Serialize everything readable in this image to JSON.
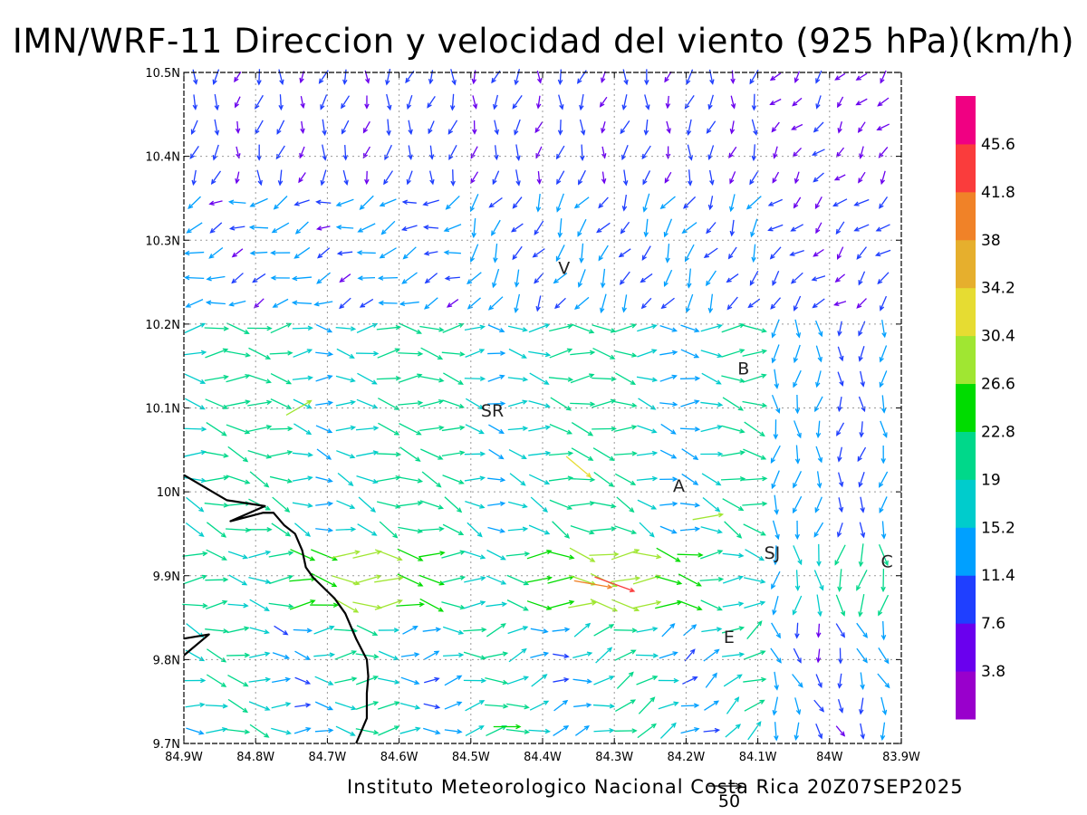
{
  "title": "IMN/WRF-11 Direccion y velocidad del viento (925 hPa)(km/h)",
  "footer": "Instituto Meteorologico Nacional Costa Rica 20Z07SEP2025",
  "reference_vector_label": "50",
  "map": {
    "lon_range": [
      -84.9,
      -83.9
    ],
    "lat_range": [
      9.7,
      10.5
    ],
    "lon_ticks": [
      -84.9,
      -84.8,
      -84.7,
      -84.6,
      -84.5,
      -84.4,
      -84.3,
      -84.2,
      -84.1,
      -84.0,
      -83.9
    ],
    "lon_tick_labels": [
      "84.9W",
      "84.8W",
      "84.7W",
      "84.6W",
      "84.5W",
      "84.4W",
      "84.3W",
      "84.2W",
      "84.1W",
      "84W",
      "83.9W"
    ],
    "lat_ticks": [
      9.7,
      9.8,
      9.9,
      10.0,
      10.1,
      10.2,
      10.3,
      10.4,
      10.5
    ],
    "lat_tick_labels": [
      "9.7N",
      "9.8N",
      "9.9N",
      "10N",
      "10.1N",
      "10.2N",
      "10.3N",
      "10.4N",
      "10.5N"
    ],
    "gridlines": true,
    "grid_style": "dotted",
    "coastline": [
      [
        -84.9,
        10.02
      ],
      [
        -84.84,
        9.99
      ],
      [
        -84.787,
        9.983
      ],
      [
        -84.835,
        9.965
      ],
      [
        -84.79,
        9.975
      ],
      [
        -84.775,
        9.975
      ],
      [
        -84.76,
        9.96
      ],
      [
        -84.745,
        9.95
      ],
      [
        -84.735,
        9.93
      ],
      [
        -84.73,
        9.91
      ],
      [
        -84.72,
        9.898
      ],
      [
        -84.69,
        9.873
      ],
      [
        -84.675,
        9.855
      ],
      [
        -84.66,
        9.825
      ],
      [
        -84.645,
        9.8
      ],
      [
        -84.643,
        9.78
      ],
      [
        -84.645,
        9.76
      ],
      [
        -84.645,
        9.73
      ],
      [
        -84.66,
        9.7
      ]
    ],
    "coastline_2": [
      [
        -84.9,
        9.805
      ],
      [
        -84.865,
        9.83
      ],
      [
        -84.9,
        9.825
      ]
    ],
    "cities": [
      {
        "label": "V",
        "lon": -84.37,
        "lat": 10.26
      },
      {
        "label": "B",
        "lon": -84.12,
        "lat": 10.14
      },
      {
        "label": "SR",
        "lon": -84.47,
        "lat": 10.09
      },
      {
        "label": "A",
        "lon": -84.21,
        "lat": 10.0
      },
      {
        "label": "SJ",
        "lon": -84.08,
        "lat": 9.92
      },
      {
        "label": "C",
        "lon": -83.92,
        "lat": 9.91
      },
      {
        "label": "E",
        "lon": -84.14,
        "lat": 9.82
      }
    ]
  },
  "colorbar": {
    "labels": [
      "3.8",
      "7.6",
      "11.4",
      "15.2",
      "19",
      "22.8",
      "26.6",
      "30.4",
      "34.2",
      "38",
      "41.8",
      "45.6"
    ],
    "colors": [
      "#9900cc",
      "#6a00ee",
      "#1f3fff",
      "#00a0ff",
      "#00cccc",
      "#00d88a",
      "#00dc00",
      "#a0e632",
      "#e6dc32",
      "#e6af2d",
      "#f08228",
      "#fa3c3c",
      "#f00082"
    ]
  },
  "chart_data": {
    "type": "vector_field",
    "title": "IMN/WRF-11 Direccion y velocidad del viento (925 hPa)(km/h)",
    "grid_lon_start": -84.9,
    "grid_lat_start": 9.7,
    "grid_step_deg": 0.03,
    "grid_cols": 35,
    "grid_rows": 27,
    "reference_speed_kmh": 50,
    "notable_vectors": [
      {
        "lon": -84.3,
        "lat": 9.89,
        "dir_to_deg": 110,
        "speed_kmh": 45
      },
      {
        "lon": -84.33,
        "lat": 9.89,
        "dir_to_deg": 100,
        "speed_kmh": 40
      },
      {
        "lon": -84.35,
        "lat": 10.03,
        "dir_to_deg": 130,
        "speed_kmh": 32
      },
      {
        "lon": -84.17,
        "lat": 9.97,
        "dir_to_deg": 80,
        "speed_kmh": 30
      },
      {
        "lon": -84.74,
        "lat": 10.1,
        "dir_to_deg": 60,
        "speed_kmh": 28
      },
      {
        "lon": -84.45,
        "lat": 9.72,
        "dir_to_deg": 90,
        "speed_kmh": 25
      }
    ],
    "regimes": [
      {
        "region": "north (lat > 10.35)",
        "dir_to_deg": 190,
        "speed_kmh": 6
      },
      {
        "region": "northwest (lat 10.2-10.35, lon < -84.5)",
        "dir_to_deg": 250,
        "speed_kmh": 9
      },
      {
        "region": "central-west (lat 9.95-10.2)",
        "dir_to_deg": 110,
        "speed_kmh": 17
      },
      {
        "region": "central valley (lat 9.85-9.95)",
        "dir_to_deg": 95,
        "speed_kmh": 24
      },
      {
        "region": "south (lat < 9.85)",
        "dir_to_deg": 70,
        "speed_kmh": 16
      },
      {
        "region": "east (lon > -84.1)",
        "dir_to_deg": 240,
        "speed_kmh": 10
      }
    ]
  }
}
